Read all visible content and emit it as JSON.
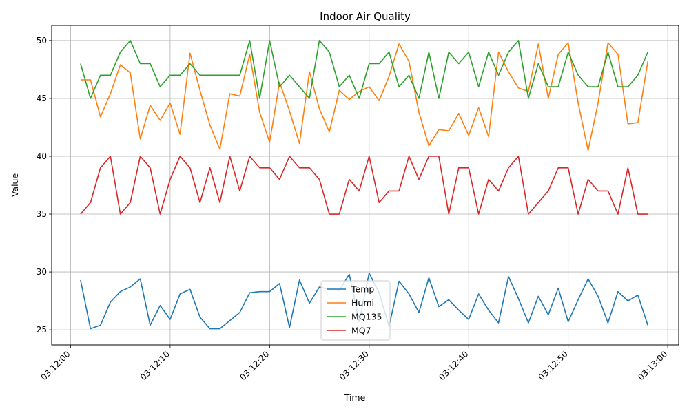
{
  "chart_data": {
    "type": "line",
    "title": "Indoor Air Quality",
    "xlabel": "Time",
    "ylabel": "Value",
    "x_unit": "seconds",
    "x_start": "03:12:01",
    "x_step_seconds": 1,
    "xlim": [
      "03:12:00",
      "03:13:00"
    ],
    "ylim": [
      23.7,
      51.3
    ],
    "x_ticks": [
      "03:12:00",
      "03:12:10",
      "03:12:20",
      "03:12:30",
      "03:12:40",
      "03:12:50",
      "03:13:00"
    ],
    "y_ticks": [
      25,
      30,
      35,
      40,
      45,
      50
    ],
    "grid": true,
    "legend_position": "bottom-center",
    "series": [
      {
        "name": "Temp",
        "color": "#1f77b4",
        "values": [
          29.3,
          25.1,
          25.4,
          27.4,
          28.3,
          28.7,
          29.4,
          25.4,
          27.1,
          25.9,
          28.1,
          28.5,
          26.1,
          25.1,
          25.1,
          25.8,
          26.5,
          28.2,
          28.3,
          28.3,
          29.0,
          25.2,
          29.3,
          27.3,
          28.7,
          28.5,
          28.4,
          29.8,
          25.7,
          29.9,
          28.2,
          25.3,
          29.2,
          28.1,
          26.5,
          29.5,
          27.0,
          27.6,
          26.7,
          25.9,
          28.1,
          26.7,
          25.6,
          29.6,
          27.7,
          25.6,
          27.9,
          26.3,
          28.6,
          25.7,
          27.6,
          29.4,
          27.9,
          25.6,
          28.3,
          27.5,
          28.0,
          25.4
        ]
      },
      {
        "name": "Humi",
        "color": "#ff7f0e",
        "values": [
          46.6,
          46.6,
          43.4,
          45.4,
          47.9,
          47.2,
          41.5,
          44.4,
          43.1,
          44.6,
          41.9,
          48.9,
          45.7,
          42.7,
          40.6,
          45.4,
          45.2,
          48.8,
          43.8,
          41.2,
          46.4,
          43.9,
          41.1,
          47.3,
          44.1,
          42.1,
          45.7,
          44.9,
          45.6,
          46.0,
          44.8,
          46.9,
          49.7,
          48.2,
          43.8,
          40.9,
          42.3,
          42.2,
          43.7,
          41.8,
          44.2,
          41.7,
          49.0,
          47.3,
          45.9,
          45.6,
          49.7,
          45.0,
          48.8,
          49.8,
          44.6,
          40.5,
          44.6,
          49.8,
          48.8,
          42.8,
          42.9,
          48.2
        ]
      },
      {
        "name": "MQ135",
        "color": "#2ca02c",
        "values": [
          48,
          45,
          47,
          47,
          49,
          50,
          48,
          48,
          46,
          47,
          47,
          48,
          47,
          47,
          47,
          47,
          47,
          50,
          45,
          50,
          46,
          47,
          46,
          45,
          50,
          49,
          46,
          47,
          45,
          48,
          48,
          49,
          46,
          47,
          45,
          49,
          45,
          49,
          48,
          49,
          46,
          49,
          47,
          49,
          50,
          45,
          48,
          46,
          46,
          49,
          47,
          46,
          46,
          49,
          46,
          46,
          47,
          49
        ]
      },
      {
        "name": "MQ7",
        "color": "#d62728",
        "values": [
          35,
          36,
          39,
          40,
          35,
          36,
          40,
          39,
          35,
          38,
          40,
          39,
          36,
          39,
          36,
          40,
          37,
          40,
          39,
          39,
          38,
          40,
          39,
          39,
          38,
          35,
          35,
          38,
          37,
          40,
          36,
          37,
          37,
          40,
          38,
          40,
          40,
          35,
          39,
          39,
          35,
          38,
          37,
          39,
          40,
          35,
          36,
          37,
          39,
          39,
          35,
          38,
          37,
          37,
          35,
          39,
          35,
          35
        ]
      }
    ]
  }
}
